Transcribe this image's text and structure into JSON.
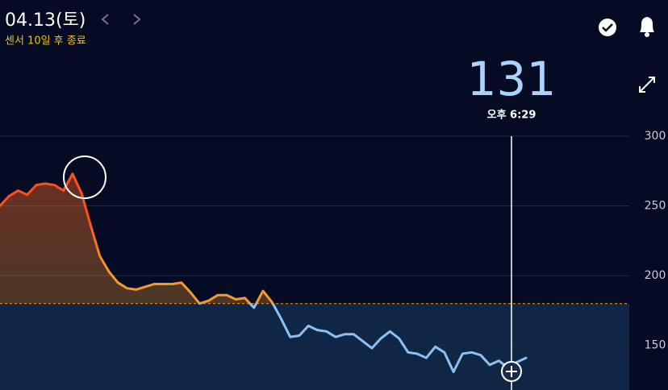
{
  "header": {
    "date": "04.13(토)",
    "sensor_note": "센서 10일 후 종료"
  },
  "current": {
    "value": "131",
    "time": "오후 6:29"
  },
  "chart_data": {
    "type": "line",
    "values": [
      250,
      257,
      261,
      258,
      265,
      266,
      265,
      261,
      273,
      259,
      236,
      214,
      203,
      195,
      191,
      190,
      192,
      194,
      194,
      194,
      195,
      188,
      180,
      182,
      186,
      186,
      183,
      184,
      177,
      189,
      181,
      169,
      156,
      157,
      164,
      161,
      160,
      156,
      158,
      158,
      153,
      148,
      155,
      160,
      155,
      145,
      144,
      141,
      149,
      145,
      131,
      144,
      145,
      143,
      136,
      139,
      134,
      138,
      141
    ],
    "ylim": [
      118,
      300
    ],
    "yticks": [
      150,
      200,
      250,
      300
    ],
    "grid": true,
    "target_high": 180,
    "color_high": "#f39a2e",
    "color_peak": "#ff4f1f",
    "color_in_range": "#8cc0f2"
  }
}
